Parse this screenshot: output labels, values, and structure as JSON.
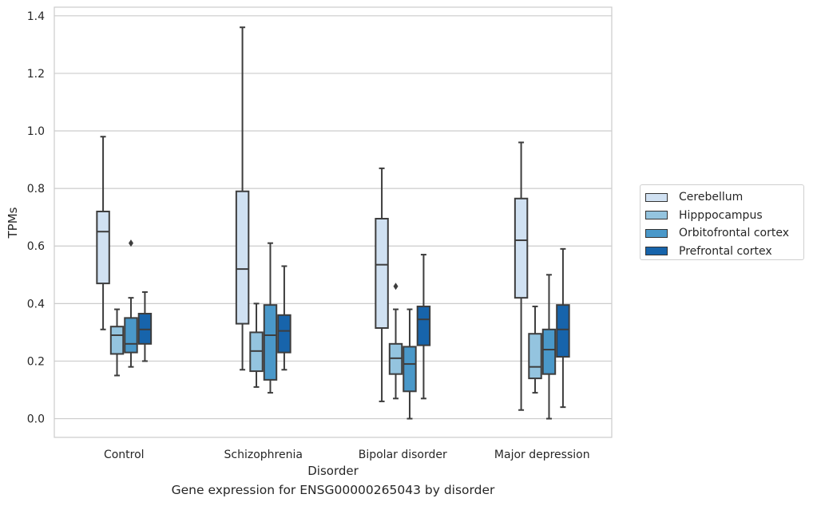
{
  "caption": "Gene expression for ENSG00000265043 by disorder",
  "chart_data": {
    "type": "box",
    "xlabel": "Disorder",
    "ylabel": "TPMs",
    "ylim": [
      -0.065,
      1.43
    ],
    "yticks": [
      0.0,
      0.2,
      0.4,
      0.6,
      0.8,
      1.0,
      1.2,
      1.4
    ],
    "ytick_labels": [
      "0.0",
      "0.2",
      "0.4",
      "0.6",
      "0.8",
      "1.0",
      "1.2",
      "1.4"
    ],
    "grid": true,
    "legend_position": "right",
    "categories": [
      "Control",
      "Schizophrenia",
      "Bipolar disorder",
      "Major depression"
    ],
    "series": [
      {
        "name": "Cerebellum",
        "color": "#d0e1f2",
        "boxes": [
          {
            "whislo": 0.31,
            "q1": 0.47,
            "med": 0.65,
            "q3": 0.72,
            "whishi": 0.98,
            "fliers": []
          },
          {
            "whislo": 0.17,
            "q1": 0.33,
            "med": 0.52,
            "q3": 0.79,
            "whishi": 1.36,
            "fliers": []
          },
          {
            "whislo": 0.06,
            "q1": 0.315,
            "med": 0.535,
            "q3": 0.695,
            "whishi": 0.87,
            "fliers": []
          },
          {
            "whislo": 0.03,
            "q1": 0.42,
            "med": 0.62,
            "q3": 0.765,
            "whishi": 0.96,
            "fliers": []
          }
        ]
      },
      {
        "name": "Hipppocampus",
        "color": "#94c4df",
        "boxes": [
          {
            "whislo": 0.15,
            "q1": 0.225,
            "med": 0.29,
            "q3": 0.32,
            "whishi": 0.38,
            "fliers": []
          },
          {
            "whislo": 0.11,
            "q1": 0.165,
            "med": 0.235,
            "q3": 0.3,
            "whishi": 0.4,
            "fliers": []
          },
          {
            "whislo": 0.07,
            "q1": 0.155,
            "med": 0.21,
            "q3": 0.26,
            "whishi": 0.38,
            "fliers": [
              0.46
            ]
          },
          {
            "whislo": 0.09,
            "q1": 0.14,
            "med": 0.18,
            "q3": 0.295,
            "whishi": 0.39,
            "fliers": []
          }
        ]
      },
      {
        "name": "Orbitofrontal cortex",
        "color": "#4a98c9",
        "boxes": [
          {
            "whislo": 0.18,
            "q1": 0.23,
            "med": 0.26,
            "q3": 0.35,
            "whishi": 0.42,
            "fliers": [
              0.61
            ]
          },
          {
            "whislo": 0.09,
            "q1": 0.135,
            "med": 0.29,
            "q3": 0.395,
            "whishi": 0.61,
            "fliers": []
          },
          {
            "whislo": 0.0,
            "q1": 0.095,
            "med": 0.19,
            "q3": 0.25,
            "whishi": 0.38,
            "fliers": []
          },
          {
            "whislo": 0.0,
            "q1": 0.155,
            "med": 0.24,
            "q3": 0.31,
            "whishi": 0.5,
            "fliers": []
          }
        ]
      },
      {
        "name": "Prefrontal cortex",
        "color": "#1764ab",
        "boxes": [
          {
            "whislo": 0.2,
            "q1": 0.26,
            "med": 0.31,
            "q3": 0.365,
            "whishi": 0.44,
            "fliers": []
          },
          {
            "whislo": 0.17,
            "q1": 0.23,
            "med": 0.305,
            "q3": 0.36,
            "whishi": 0.53,
            "fliers": []
          },
          {
            "whislo": 0.07,
            "q1": 0.255,
            "med": 0.345,
            "q3": 0.39,
            "whishi": 0.57,
            "fliers": []
          },
          {
            "whislo": 0.04,
            "q1": 0.215,
            "med": 0.31,
            "q3": 0.395,
            "whishi": 0.59,
            "fliers": []
          }
        ]
      }
    ]
  }
}
